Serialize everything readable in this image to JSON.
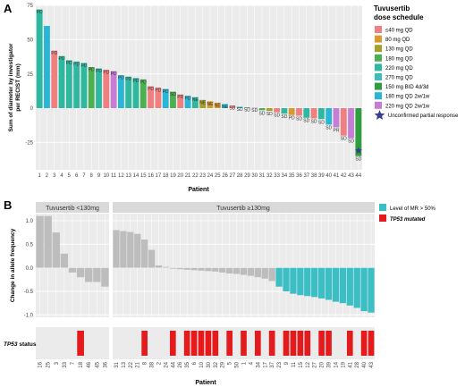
{
  "panel_a": {
    "letter": "A",
    "legend_title_1": "Tuvusertib",
    "legend_title_2": "dose schedule",
    "star_label": "Unconfirmed partial response"
  },
  "panel_b": {
    "letter": "B",
    "legend_mr": "Level of MR > 50%",
    "legend_tp53": "TP53 mutated",
    "tp53_status_label": "TP53",
    "tp53_status_suffix": " status"
  },
  "chart_data": [
    {
      "type": "bar",
      "panel": "A",
      "title": "",
      "xlabel": "Patient",
      "ylabel_lines": [
        "Sum of diameter by investigator",
        "per RECIST (mm)"
      ],
      "ylim": [
        -45,
        75
      ],
      "yticks": [
        -25,
        0,
        25,
        50,
        75
      ],
      "grid": true,
      "legend": {
        "title": "Tuvusertib dose schedule",
        "placement": "right",
        "entries": [
          {
            "key": "d40",
            "name": "≤40 mg QD",
            "color": "#F08080"
          },
          {
            "key": "d80",
            "name": "80 mg QD",
            "color": "#D89A2E"
          },
          {
            "key": "d130",
            "name": "130 mg QD",
            "color": "#A6A02B"
          },
          {
            "key": "d180",
            "name": "180 mg QD",
            "color": "#4CAF50"
          },
          {
            "key": "d220",
            "name": "220 mg QD",
            "color": "#2EB8A0"
          },
          {
            "key": "d270",
            "name": "270 mg QD",
            "color": "#3DBFB8"
          },
          {
            "key": "d150bid",
            "name": "150 mg BID 4d/3d",
            "color": "#2E9E3E"
          },
          {
            "key": "d180w",
            "name": "180 mg QD 2w/1w",
            "color": "#29B6D6"
          },
          {
            "key": "d220w",
            "name": "220 mg QD 2w/1w",
            "color": "#C77DD6"
          }
        ]
      },
      "categories": [
        "1",
        "2",
        "3",
        "4",
        "5",
        "6",
        "7",
        "8",
        "9",
        "10",
        "11",
        "12",
        "13",
        "14",
        "15",
        "16",
        "17",
        "18",
        "19",
        "20",
        "21",
        "22",
        "23",
        "24",
        "25",
        "26",
        "27",
        "28",
        "29",
        "30",
        "31",
        "32",
        "33",
        "34",
        "35",
        "36",
        "37",
        "38",
        "39",
        "40",
        "41",
        "42",
        "43",
        "44"
      ],
      "values": [
        72,
        60,
        42,
        38,
        35,
        34,
        33,
        30,
        29,
        28,
        27,
        24,
        23,
        22,
        21,
        16,
        15,
        14,
        12,
        10,
        9,
        8,
        6,
        5,
        4,
        3,
        2,
        1,
        0.5,
        0.3,
        -1.5,
        -2,
        -3,
        -4,
        -5,
        -5.5,
        -7,
        -7.5,
        -8,
        -12,
        -14,
        -20,
        -22,
        -35
      ],
      "bar_colors": [
        "#2EB8A0",
        "#29B6D6",
        "#F08080",
        "#2EB8A0",
        "#2EB8A0",
        "#2EB8A0",
        "#2EB8A0",
        "#4CAF50",
        "#2EB8A0",
        "#F08080",
        "#C77DD6",
        "#29B6D6",
        "#2EB8A0",
        "#2EB8A0",
        "#4CAF50",
        "#F08080",
        "#F08080",
        "#29B6D6",
        "#4CAF50",
        "#F08080",
        "#29B6D6",
        "#2EB8A0",
        "#A6A02B",
        "#D89A2E",
        "#D89A2E",
        "#29B6D6",
        "#F08080",
        "#29B6D6",
        "#4CAF50",
        "#C77DD6",
        "#4CAF50",
        "#A6A02B",
        "#F08080",
        "#2EB8A0",
        "#D89A2E",
        "#F08080",
        "#2EB8A0",
        "#F08080",
        "#2EB8A0",
        "#29B6D6",
        "#C77DD6",
        "#F08080",
        "#C77DD6",
        "#2E9E3E"
      ],
      "bar_labels": [
        "PD",
        "",
        "PD",
        "PD",
        "PD",
        "PD",
        "PD",
        "PD",
        "PD",
        "PD",
        "PD",
        "PD",
        "PD",
        "PD",
        "PD",
        "PD",
        "PD",
        "PD",
        "SD",
        "PD",
        "PD",
        "NE",
        "NE",
        "NE",
        "NE",
        "NE",
        "SD",
        "SD",
        "SD",
        "SD",
        "SD",
        "SD",
        "SD",
        "SD",
        "PD",
        "SD",
        "SD",
        "SD",
        "SD",
        "SD",
        "PR",
        "SD",
        "SD",
        "SD"
      ],
      "annotations": [
        {
          "category": "44",
          "marker": "star",
          "value": -31,
          "color": "#3B3B8F",
          "label": "Unconfirmed partial response"
        }
      ]
    },
    {
      "type": "bar",
      "panel": "B",
      "title": "",
      "xlabel": "Patient",
      "ylabel": "Change in allele frequency",
      "ylim": [
        -1.05,
        1.15
      ],
      "yticks": [
        -1.0,
        -0.5,
        0.0,
        0.5,
        1.0
      ],
      "grid": true,
      "facets": [
        {
          "label": "Tuvusertib <130mg",
          "count": 9
        },
        {
          "label": "Tuvusertib ≥130mg",
          "count": 37
        }
      ],
      "legend": {
        "placement": "right",
        "entries": [
          {
            "name": "Level of MR > 50%",
            "color": "#3CBFC4"
          },
          {
            "name": "TP53 mutated",
            "color": "#E41A1C"
          }
        ]
      },
      "categories": [
        "16",
        "25",
        "3",
        "33",
        "7",
        "18",
        "46",
        "45",
        "36",
        "31",
        "13",
        "22",
        "21",
        "8",
        "38",
        "2",
        "24",
        "44",
        "26",
        "35",
        "6",
        "10",
        "30",
        "32",
        "29",
        "5",
        "50",
        "1",
        "4",
        "34",
        "17",
        "37",
        "23",
        "9",
        "11",
        "15",
        "12",
        "27",
        "20",
        "39",
        "14",
        "19",
        "41",
        "28",
        "40",
        "43"
      ],
      "values": [
        1.1,
        1.1,
        0.75,
        0.3,
        -0.1,
        -0.2,
        -0.3,
        -0.3,
        -0.4,
        0.8,
        0.78,
        0.76,
        0.72,
        0.6,
        0.38,
        0.05,
        0.02,
        -0.02,
        -0.03,
        -0.04,
        -0.05,
        -0.06,
        -0.07,
        -0.08,
        -0.1,
        -0.12,
        -0.13,
        -0.15,
        -0.17,
        -0.2,
        -0.23,
        -0.28,
        -0.4,
        -0.5,
        -0.55,
        -0.58,
        -0.6,
        -0.62,
        -0.65,
        -0.68,
        -0.72,
        -0.75,
        -0.8,
        -0.85,
        -0.92,
        -0.95
      ],
      "mr_over_50": [
        false,
        false,
        false,
        false,
        false,
        false,
        false,
        false,
        false,
        false,
        false,
        false,
        false,
        false,
        false,
        false,
        false,
        false,
        false,
        false,
        false,
        false,
        false,
        false,
        false,
        false,
        false,
        false,
        false,
        false,
        false,
        false,
        true,
        true,
        true,
        true,
        true,
        true,
        true,
        true,
        true,
        true,
        true,
        true,
        true,
        true
      ],
      "tp53_mutated": [
        false,
        false,
        false,
        false,
        false,
        true,
        false,
        false,
        false,
        false,
        false,
        false,
        false,
        true,
        false,
        false,
        false,
        true,
        false,
        true,
        true,
        true,
        true,
        true,
        false,
        true,
        false,
        true,
        false,
        true,
        false,
        true,
        false,
        true,
        true,
        true,
        true,
        false,
        true,
        true,
        false,
        false,
        true,
        false,
        true,
        true
      ]
    }
  ]
}
